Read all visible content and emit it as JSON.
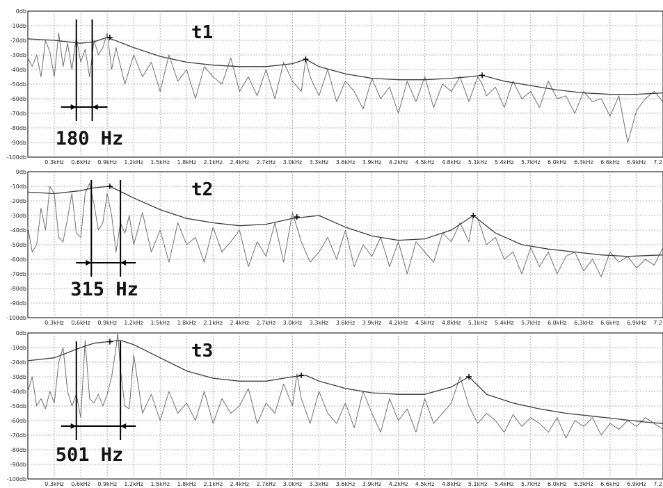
{
  "chart_data": [
    {
      "type": "line",
      "title": "t1",
      "x_unit": "kHz",
      "y_unit": "db",
      "xlim": [
        0,
        7.2
      ],
      "ylim": [
        -100,
        0
      ],
      "grid": true,
      "x_tick_values": [
        0.3,
        0.6,
        0.9,
        1.2,
        1.5,
        1.8,
        2.1,
        2.4,
        2.7,
        3.0,
        3.3,
        3.6,
        3.9,
        4.2,
        4.5,
        4.8,
        5.1,
        5.4,
        5.7,
        6.0,
        6.3,
        6.6,
        6.9,
        7.2
      ],
      "x_tick_labels": [
        "0.3kHz",
        "0.6kHz",
        "0.9kHz",
        "1.2kHz",
        "1.5kHz",
        "1.8kHz",
        "2.1kHz",
        "2.4kHz",
        "2.7kHz",
        "3.0kHz",
        "3.3kHz",
        "3.6kHz",
        "3.9kHz",
        "4.2kHz",
        "4.5kHz",
        "4.8kHz",
        "5.1kHz",
        "5.4kHz",
        "5.7kHz",
        "6.0kHz",
        "6.3kHz",
        "6.6kHz",
        "6.9kHz",
        "7.2"
      ],
      "y_tick_values": [
        0,
        -10,
        -20,
        -30,
        -40,
        -50,
        -60,
        -70,
        -80,
        -90,
        -100
      ],
      "y_tick_labels": [
        "0db",
        "-10db",
        "-20db",
        "-30db",
        "-40db",
        "-50db",
        "-60db",
        "-70db",
        "-80db",
        "-90db",
        "-100db"
      ],
      "series": [
        {
          "role": "spectrum",
          "x": [
            0,
            0.05,
            0.1,
            0.15,
            0.2,
            0.25,
            0.3,
            0.35,
            0.4,
            0.45,
            0.5,
            0.55,
            0.6,
            0.65,
            0.7,
            0.75,
            0.8,
            0.85,
            0.9,
            0.95,
            1.0,
            1.1,
            1.2,
            1.3,
            1.4,
            1.5,
            1.6,
            1.7,
            1.8,
            1.9,
            2.0,
            2.1,
            2.2,
            2.3,
            2.4,
            2.5,
            2.6,
            2.7,
            2.8,
            2.9,
            3.0,
            3.1,
            3.15,
            3.2,
            3.3,
            3.4,
            3.5,
            3.6,
            3.7,
            3.8,
            3.9,
            4.0,
            4.1,
            4.2,
            4.3,
            4.4,
            4.5,
            4.6,
            4.7,
            4.8,
            4.9,
            5.0,
            5.1,
            5.15,
            5.2,
            5.3,
            5.4,
            5.5,
            5.6,
            5.7,
            5.8,
            5.9,
            6.0,
            6.1,
            6.2,
            6.3,
            6.4,
            6.5,
            6.6,
            6.7,
            6.8,
            6.9,
            7.0,
            7.1,
            7.2
          ],
          "y": [
            -32,
            -38,
            -30,
            -45,
            -20,
            -28,
            -45,
            -15,
            -38,
            -22,
            -40,
            -18,
            -35,
            -26,
            -45,
            -20,
            -30,
            -25,
            -15,
            -40,
            -25,
            -50,
            -30,
            -45,
            -35,
            -55,
            -30,
            -48,
            -40,
            -60,
            -38,
            -45,
            -50,
            -32,
            -55,
            -45,
            -58,
            -40,
            -60,
            -35,
            -48,
            -55,
            -33,
            -45,
            -58,
            -40,
            -62,
            -48,
            -55,
            -67,
            -46,
            -60,
            -52,
            -70,
            -48,
            -62,
            -45,
            -66,
            -50,
            -55,
            -45,
            -62,
            -45,
            -50,
            -58,
            -52,
            -66,
            -48,
            -60,
            -55,
            -66,
            -48,
            -60,
            -58,
            -70,
            -55,
            -62,
            -60,
            -72,
            -58,
            -90,
            -68,
            -60,
            -55,
            -62
          ]
        },
        {
          "role": "envelope",
          "x": [
            0,
            0.3,
            0.6,
            0.75,
            0.9,
            1.2,
            1.5,
            1.8,
            2.1,
            2.4,
            2.7,
            3.0,
            3.15,
            3.3,
            3.6,
            3.9,
            4.2,
            4.5,
            4.8,
            5.0,
            5.15,
            5.4,
            5.7,
            6.0,
            6.3,
            6.6,
            6.9,
            7.2
          ],
          "y": [
            -19,
            -20,
            -22,
            -21,
            -18,
            -25,
            -31,
            -35,
            -37,
            -38,
            -38,
            -36,
            -33,
            -38,
            -43,
            -46,
            -47,
            -47,
            -46,
            -45,
            -44,
            -48,
            -51,
            -54,
            -56,
            -57,
            -57,
            -56
          ]
        },
        {
          "role": "peak-markers",
          "x": [
            0.93,
            3.15,
            5.15
          ],
          "y": [
            -18,
            -33,
            -44
          ]
        }
      ],
      "annotations": [
        {
          "text": "180 Hz",
          "x_from": 0.55,
          "x_to": 0.73
        }
      ]
    },
    {
      "type": "line",
      "title": "t2",
      "x_unit": "kHz",
      "y_unit": "db",
      "xlim": [
        0,
        7.2
      ],
      "ylim": [
        -100,
        0
      ],
      "grid": true,
      "x_tick_values": [
        0.3,
        0.6,
        0.9,
        1.2,
        1.5,
        1.8,
        2.1,
        2.4,
        2.7,
        3.0,
        3.3,
        3.6,
        3.9,
        4.2,
        4.5,
        4.8,
        5.1,
        5.4,
        5.7,
        6.0,
        6.3,
        6.6,
        6.9,
        7.2
      ],
      "x_tick_labels": [
        "0.3kHz",
        "0.6kHz",
        "0.9kHz",
        "1.2kHz",
        "1.5kHz",
        "1.8kHz",
        "2.1kHz",
        "2.4kHz",
        "2.7kHz",
        "3.0kHz",
        "3.3kHz",
        "3.6kHz",
        "3.9kHz",
        "4.2kHz",
        "4.5kHz",
        "4.8kHz",
        "5.1kHz",
        "5.4kHz",
        "5.7kHz",
        "6.0kHz",
        "6.3kHz",
        "6.6kHz",
        "6.9kHz",
        "7.2"
      ],
      "y_tick_values": [
        0,
        -10,
        -20,
        -30,
        -40,
        -50,
        -60,
        -70,
        -80,
        -90,
        -100
      ],
      "y_tick_labels": [
        "0db",
        "-10db",
        "-20db",
        "-30db",
        "-40db",
        "-50db",
        "-60db",
        "-70db",
        "-80db",
        "-90db",
        "-100db"
      ],
      "series": [
        {
          "role": "spectrum",
          "x": [
            0,
            0.05,
            0.1,
            0.15,
            0.2,
            0.25,
            0.3,
            0.35,
            0.4,
            0.45,
            0.5,
            0.55,
            0.6,
            0.65,
            0.7,
            0.75,
            0.8,
            0.85,
            0.9,
            0.95,
            1.0,
            1.05,
            1.1,
            1.15,
            1.2,
            1.3,
            1.4,
            1.5,
            1.6,
            1.7,
            1.8,
            1.9,
            2.0,
            2.1,
            2.2,
            2.3,
            2.4,
            2.5,
            2.6,
            2.7,
            2.8,
            2.9,
            3.0,
            3.1,
            3.2,
            3.3,
            3.4,
            3.5,
            3.6,
            3.7,
            3.8,
            3.9,
            4.0,
            4.1,
            4.2,
            4.3,
            4.4,
            4.5,
            4.6,
            4.7,
            4.8,
            4.9,
            5.0,
            5.05,
            5.1,
            5.2,
            5.3,
            5.4,
            5.5,
            5.6,
            5.7,
            5.8,
            5.9,
            6.0,
            6.1,
            6.2,
            6.3,
            6.4,
            6.5,
            6.6,
            6.7,
            6.8,
            6.9,
            7.0,
            7.1,
            7.2
          ],
          "y": [
            -38,
            -55,
            -50,
            -25,
            -40,
            -10,
            -15,
            -45,
            -48,
            -32,
            -15,
            -42,
            -45,
            -15,
            -8,
            -22,
            -40,
            -35,
            -15,
            -30,
            -55,
            -35,
            -42,
            -30,
            -50,
            -28,
            -55,
            -40,
            -62,
            -35,
            -50,
            -45,
            -62,
            -38,
            -55,
            -48,
            -40,
            -65,
            -48,
            -58,
            -35,
            -62,
            -28,
            -48,
            -62,
            -55,
            -45,
            -60,
            -40,
            -65,
            -50,
            -58,
            -45,
            -65,
            -48,
            -70,
            -48,
            -55,
            -62,
            -42,
            -48,
            -35,
            -48,
            -30,
            -32,
            -50,
            -45,
            -60,
            -55,
            -70,
            -52,
            -65,
            -55,
            -70,
            -58,
            -55,
            -68,
            -60,
            -72,
            -55,
            -62,
            -58,
            -66,
            -60,
            -64,
            -52
          ]
        },
        {
          "role": "envelope",
          "x": [
            0,
            0.3,
            0.6,
            0.75,
            0.93,
            1.2,
            1.5,
            1.8,
            2.1,
            2.4,
            2.7,
            3.0,
            3.3,
            3.6,
            3.9,
            4.2,
            4.5,
            4.8,
            5.05,
            5.3,
            5.6,
            5.9,
            6.2,
            6.5,
            6.8,
            7.2
          ],
          "y": [
            -14,
            -15,
            -13,
            -11,
            -10,
            -18,
            -26,
            -32,
            -35,
            -37,
            -36,
            -32,
            -30,
            -38,
            -44,
            -47,
            -46,
            -40,
            -30,
            -42,
            -50,
            -53,
            -55,
            -57,
            -58,
            -57
          ]
        },
        {
          "role": "peak-markers",
          "x": [
            0.93,
            3.05,
            5.05
          ],
          "y": [
            -10,
            -31,
            -30
          ]
        }
      ],
      "annotations": [
        {
          "text": "315 Hz",
          "x_from": 0.72,
          "x_to": 1.05
        }
      ]
    },
    {
      "type": "line",
      "title": "t3",
      "x_unit": "kHz",
      "y_unit": "db",
      "xlim": [
        0,
        7.2
      ],
      "ylim": [
        -100,
        0
      ],
      "grid": true,
      "x_tick_values": [
        0.3,
        0.6,
        0.9,
        1.2,
        1.5,
        1.8,
        2.1,
        2.4,
        2.7,
        3.0,
        3.3,
        3.6,
        3.9,
        4.2,
        4.5,
        4.8,
        5.1,
        5.4,
        5.7,
        6.0,
        6.3,
        6.6,
        6.9,
        7.2
      ],
      "x_tick_labels": [
        "0.3kHz",
        "0.6kHz",
        "0.9kHz",
        "1.2kHz",
        "1.5kHz",
        "1.8kHz",
        "2.1kHz",
        "2.4kHz",
        "2.7kHz",
        "3.0kHz",
        "3.3kHz",
        "3.6kHz",
        "3.9kHz",
        "4.2kHz",
        "4.5kHz",
        "4.8kHz",
        "5.1kHz",
        "5.4kHz",
        "5.7kHz",
        "6.0kHz",
        "6.3kHz",
        "6.6kHz",
        "6.9kHz",
        "7.2"
      ],
      "y_tick_values": [
        0,
        -10,
        -20,
        -30,
        -40,
        -50,
        -60,
        -70,
        -80,
        -90,
        -100
      ],
      "y_tick_labels": [
        "0db",
        "-10db",
        "-20db",
        "-30db",
        "-40db",
        "-50db",
        "-60db",
        "-70db",
        "-80db",
        "-90db",
        "-100db"
      ],
      "series": [
        {
          "role": "spectrum",
          "x": [
            0,
            0.05,
            0.1,
            0.15,
            0.2,
            0.25,
            0.3,
            0.35,
            0.4,
            0.45,
            0.5,
            0.55,
            0.6,
            0.65,
            0.7,
            0.75,
            0.8,
            0.85,
            0.9,
            0.95,
            1.0,
            1.02,
            1.05,
            1.1,
            1.15,
            1.2,
            1.3,
            1.4,
            1.5,
            1.6,
            1.7,
            1.8,
            1.9,
            2.0,
            2.1,
            2.2,
            2.3,
            2.4,
            2.5,
            2.6,
            2.7,
            2.8,
            2.9,
            3.0,
            3.05,
            3.1,
            3.2,
            3.3,
            3.4,
            3.5,
            3.6,
            3.7,
            3.8,
            3.9,
            4.0,
            4.1,
            4.2,
            4.3,
            4.4,
            4.5,
            4.6,
            4.7,
            4.8,
            4.9,
            5.0,
            5.1,
            5.2,
            5.3,
            5.4,
            5.5,
            5.6,
            5.7,
            5.8,
            5.9,
            6.0,
            6.1,
            6.2,
            6.3,
            6.4,
            6.5,
            6.6,
            6.7,
            6.8,
            6.9,
            7.0,
            7.1,
            7.2
          ],
          "y": [
            -40,
            -30,
            -50,
            -45,
            -52,
            -40,
            -48,
            -20,
            -10,
            -40,
            -50,
            -42,
            -58,
            -5,
            -45,
            -48,
            -42,
            -50,
            -42,
            -30,
            -10,
            0,
            -25,
            -50,
            -52,
            -15,
            -55,
            -42,
            -60,
            -40,
            -55,
            -48,
            -60,
            -40,
            -62,
            -45,
            -55,
            -50,
            -38,
            -62,
            -48,
            -55,
            -35,
            -50,
            -28,
            -45,
            -62,
            -40,
            -55,
            -62,
            -48,
            -65,
            -40,
            -55,
            -68,
            -45,
            -60,
            -52,
            -68,
            -45,
            -62,
            -55,
            -48,
            -30,
            -50,
            -62,
            -55,
            -60,
            -68,
            -56,
            -64,
            -58,
            -62,
            -68,
            -58,
            -72,
            -60,
            -64,
            -58,
            -70,
            -62,
            -66,
            -60,
            -64,
            -58,
            -62,
            -66
          ]
        },
        {
          "role": "envelope",
          "x": [
            0,
            0.3,
            0.6,
            0.75,
            0.9,
            1.05,
            1.2,
            1.5,
            1.8,
            2.1,
            2.4,
            2.7,
            3.0,
            3.15,
            3.3,
            3.6,
            3.9,
            4.2,
            4.5,
            4.8,
            5.0,
            5.2,
            5.5,
            5.8,
            6.1,
            6.4,
            6.7,
            7.0,
            7.2
          ],
          "y": [
            -19,
            -17,
            -10,
            -7,
            -6,
            -5,
            -8,
            -17,
            -26,
            -31,
            -33,
            -33,
            -30,
            -29,
            -33,
            -38,
            -41,
            -42,
            -42,
            -37,
            -30,
            -42,
            -48,
            -52,
            -55,
            -57,
            -59,
            -61,
            -62
          ]
        },
        {
          "role": "peak-markers",
          "x": [
            0.93,
            3.1,
            5.0
          ],
          "y": [
            -6,
            -29,
            -30
          ]
        }
      ],
      "annotations": [
        {
          "text": "501 Hz",
          "x_from": 0.55,
          "x_to": 1.05
        }
      ]
    }
  ]
}
